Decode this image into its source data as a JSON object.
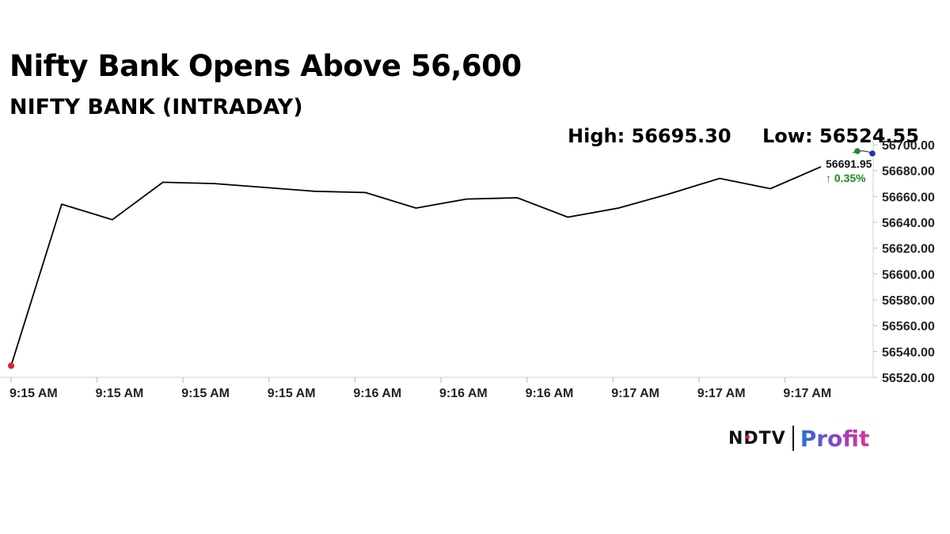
{
  "header": {
    "title": "Nifty Bank Opens Above 56,600",
    "subtitle": "NIFTY BANK (INTRADAY)",
    "high_label": "High: 56695.30",
    "low_label": "Low: 56524.55"
  },
  "logo": {
    "brand_left": "NDTV",
    "brand_right": "Profit",
    "accent": "#e31e24"
  },
  "chart_data": {
    "type": "line",
    "x_tick_labels": [
      "9:15 AM",
      "9:15 AM",
      "9:15 AM",
      "9:15 AM",
      "9:16 AM",
      "9:16 AM",
      "9:16 AM",
      "9:17 AM",
      "9:17 AM",
      "9:17 AM"
    ],
    "y_ticks": [
      "56520.00",
      "56540.00",
      "56560.00",
      "56580.00",
      "56600.00",
      "56620.00",
      "56640.00",
      "56660.00",
      "56680.00",
      "56700.00"
    ],
    "ylim": [
      56520,
      56700
    ],
    "grid": false,
    "series": [
      {
        "values": [
          56529,
          56654,
          56642,
          56671,
          56670,
          56667,
          56664,
          56663,
          56651,
          56658,
          56659,
          56644,
          56651,
          56662,
          56674,
          56666,
          56683
        ],
        "color": "#000000"
      }
    ],
    "start_marker_color": "#e31e24",
    "last_value_label": "56691.95",
    "change_label": "↑ 0.35%",
    "change_color": "#1f8a1f",
    "high_marker_color": "#1f8a1f",
    "low_marker_color": "#2233aa"
  }
}
